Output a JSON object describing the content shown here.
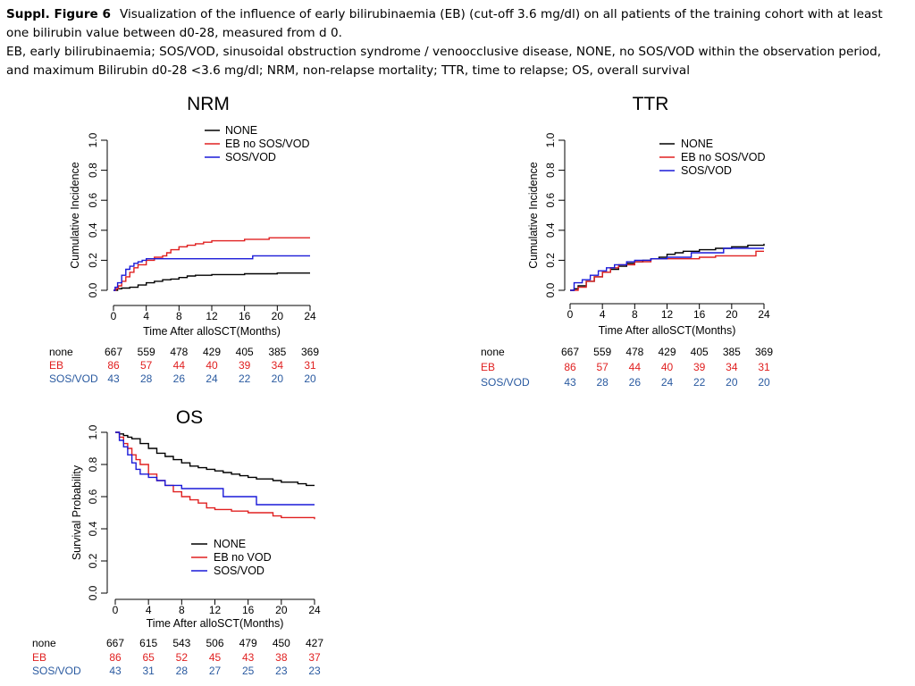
{
  "caption": {
    "label": "Suppl. Figure 6",
    "line1": "Visualization of  the influence of early bilirubinaemia (EB) (cut-off 3.6 mg/dl) on all patients of the training cohort with at least one bilirubin value between d0-28, measured from d 0.",
    "line2": "EB, early bilirubinaemia; SOS/VOD, sinusoidal obstruction syndrome / venoocclusive disease, NONE, no SOS/VOD within the observation period, and maximum Bilirubin d0-28 <3.6 mg/dl; NRM, non-relapse mortality; TTR, time to relapse; OS, overall survival"
  },
  "colors": {
    "none": "#000000",
    "eb": "#e02020",
    "sos": "#1a1ad8",
    "risk_eb": "#e02020",
    "risk_sos": "#2a5aa0"
  },
  "chart_data": [
    {
      "id": "nrm",
      "type": "line",
      "title": "NRM",
      "xlabel": "Time After alloSCT(Months)",
      "ylabel": "Cumulative Incidence",
      "xlim": [
        0,
        24
      ],
      "ylim": [
        0,
        1
      ],
      "xticks": [
        "0",
        "4",
        "8",
        "12",
        "16",
        "20",
        "24"
      ],
      "yticks": [
        "0.0",
        "0.2",
        "0.4",
        "0.6",
        "0.8",
        "1.0"
      ],
      "legend": [
        "NONE",
        "EB no SOS/VOD",
        "SOS/VOD"
      ],
      "series": [
        {
          "name": "NONE",
          "color_key": "none",
          "step": true,
          "x": [
            0,
            0.5,
            1,
            2,
            3,
            4,
            5,
            6,
            7,
            8,
            9,
            10,
            12,
            14,
            16,
            18,
            20,
            22,
            24
          ],
          "y": [
            0,
            0.01,
            0.015,
            0.02,
            0.035,
            0.05,
            0.06,
            0.07,
            0.075,
            0.085,
            0.095,
            0.1,
            0.105,
            0.105,
            0.11,
            0.11,
            0.115,
            0.115,
            0.115
          ]
        },
        {
          "name": "EB no SOS/VOD",
          "color_key": "eb",
          "step": true,
          "x": [
            0,
            0.3,
            0.6,
            1,
            1.5,
            2,
            2.5,
            3,
            4,
            5,
            6,
            6.5,
            7,
            8,
            9,
            10,
            11,
            12,
            14,
            16,
            18,
            19,
            20,
            24
          ],
          "y": [
            0,
            0.01,
            0.03,
            0.06,
            0.09,
            0.12,
            0.15,
            0.17,
            0.2,
            0.22,
            0.23,
            0.25,
            0.27,
            0.29,
            0.3,
            0.31,
            0.32,
            0.33,
            0.33,
            0.34,
            0.34,
            0.35,
            0.35,
            0.35
          ]
        },
        {
          "name": "SOS/VOD",
          "color_key": "sos",
          "step": true,
          "x": [
            0,
            0.2,
            0.5,
            1,
            1.5,
            2,
            2.5,
            3,
            3.5,
            4,
            5,
            8,
            12,
            16,
            17,
            20,
            24
          ],
          "y": [
            0,
            0.02,
            0.05,
            0.1,
            0.14,
            0.16,
            0.18,
            0.19,
            0.2,
            0.21,
            0.21,
            0.21,
            0.21,
            0.21,
            0.23,
            0.23,
            0.23
          ]
        }
      ],
      "risk_table": {
        "labels": [
          "none",
          "EB",
          "SOS/VOD"
        ],
        "none": [
          "667",
          "559",
          "478",
          "429",
          "405",
          "385",
          "369"
        ],
        "eb": [
          "86",
          "57",
          "44",
          "40",
          "39",
          "34",
          "31"
        ],
        "sos": [
          "43",
          "28",
          "26",
          "24",
          "22",
          "20",
          "20"
        ]
      }
    },
    {
      "id": "ttr",
      "type": "line",
      "title": "TTR",
      "xlabel": "Time After alloSCT(Months)",
      "ylabel": "Cumulative Incidence",
      "xlim": [
        0,
        24
      ],
      "ylim": [
        0,
        1
      ],
      "xticks": [
        "0",
        "4",
        "8",
        "12",
        "16",
        "20",
        "24"
      ],
      "yticks": [
        "0.0",
        "0.2",
        "0.4",
        "0.6",
        "0.8",
        "1.0"
      ],
      "legend": [
        "NONE",
        "EB no SOS/VOD",
        "SOS/VOD"
      ],
      "series": [
        {
          "name": "NONE",
          "color_key": "none",
          "step": true,
          "x": [
            0,
            0.5,
            1,
            2,
            3,
            4,
            5,
            6,
            7,
            8,
            9,
            10,
            11,
            12,
            13,
            14,
            16,
            18,
            20,
            22,
            24
          ],
          "y": [
            0,
            0.01,
            0.03,
            0.06,
            0.09,
            0.12,
            0.14,
            0.16,
            0.18,
            0.19,
            0.2,
            0.21,
            0.22,
            0.24,
            0.25,
            0.26,
            0.27,
            0.28,
            0.29,
            0.3,
            0.31
          ]
        },
        {
          "name": "EB no SOS/VOD",
          "color_key": "eb",
          "step": true,
          "x": [
            0,
            1,
            2,
            3,
            4,
            5,
            6,
            8,
            10,
            12,
            16,
            18,
            20,
            23,
            24
          ],
          "y": [
            0,
            0.02,
            0.06,
            0.09,
            0.12,
            0.15,
            0.17,
            0.19,
            0.21,
            0.21,
            0.22,
            0.23,
            0.23,
            0.26,
            0.26
          ]
        },
        {
          "name": "SOS/VOD",
          "color_key": "sos",
          "step": true,
          "x": [
            0,
            0.5,
            1.5,
            2.5,
            3.5,
            4.5,
            5.5,
            7,
            8,
            10,
            12,
            15,
            19,
            24
          ],
          "y": [
            0,
            0.05,
            0.07,
            0.1,
            0.13,
            0.15,
            0.17,
            0.19,
            0.2,
            0.21,
            0.22,
            0.25,
            0.28,
            0.28
          ]
        }
      ],
      "risk_table": {
        "labels": [
          "none",
          "EB",
          "SOS/VOD"
        ],
        "none": [
          "667",
          "559",
          "478",
          "429",
          "405",
          "385",
          "369"
        ],
        "eb": [
          "86",
          "57",
          "44",
          "40",
          "39",
          "34",
          "31"
        ],
        "sos": [
          "43",
          "28",
          "26",
          "24",
          "22",
          "20",
          "20"
        ]
      }
    },
    {
      "id": "os",
      "type": "line",
      "title": "OS",
      "xlabel": "Time After alloSCT(Months)",
      "ylabel": "Survival Probability",
      "xlim": [
        0,
        24
      ],
      "ylim": [
        0,
        1
      ],
      "xticks": [
        "0",
        "4",
        "8",
        "12",
        "16",
        "20",
        "24"
      ],
      "yticks": [
        "0.0",
        "0.2",
        "0.4",
        "0.6",
        "0.8",
        "1.0"
      ],
      "legend": [
        "NONE",
        "EB no VOD",
        "SOS/VOD"
      ],
      "series": [
        {
          "name": "NONE",
          "color_key": "none",
          "step": true,
          "x": [
            0,
            0.5,
            1,
            1.5,
            2,
            3,
            4,
            5,
            6,
            7,
            8,
            9,
            10,
            11,
            12,
            13,
            14,
            15,
            16,
            17,
            18,
            19,
            20,
            21,
            22,
            23,
            24
          ],
          "y": [
            1,
            0.99,
            0.98,
            0.97,
            0.96,
            0.93,
            0.9,
            0.87,
            0.85,
            0.83,
            0.81,
            0.79,
            0.78,
            0.77,
            0.76,
            0.75,
            0.74,
            0.73,
            0.72,
            0.71,
            0.71,
            0.7,
            0.69,
            0.69,
            0.68,
            0.67,
            0.67
          ]
        },
        {
          "name": "EB no VOD",
          "color_key": "eb",
          "step": true,
          "x": [
            0,
            0.5,
            1,
            1.5,
            2,
            2.5,
            3,
            4,
            5,
            6,
            7,
            8,
            9,
            10,
            11,
            12,
            14,
            16,
            18,
            19,
            20,
            22,
            24
          ],
          "y": [
            1,
            0.97,
            0.93,
            0.9,
            0.86,
            0.83,
            0.8,
            0.74,
            0.7,
            0.67,
            0.63,
            0.6,
            0.58,
            0.56,
            0.53,
            0.52,
            0.51,
            0.5,
            0.5,
            0.48,
            0.47,
            0.47,
            0.46
          ]
        },
        {
          "name": "SOS/VOD",
          "color_key": "sos",
          "step": true,
          "x": [
            0,
            0.5,
            1,
            1.5,
            2,
            2.5,
            3,
            4,
            5,
            6,
            8,
            10,
            12,
            13,
            17,
            20,
            24
          ],
          "y": [
            1,
            0.95,
            0.91,
            0.86,
            0.81,
            0.77,
            0.74,
            0.72,
            0.7,
            0.67,
            0.65,
            0.65,
            0.65,
            0.6,
            0.55,
            0.55,
            0.55
          ]
        }
      ],
      "risk_table": {
        "labels": [
          "none",
          "EB",
          "SOS/VOD"
        ],
        "none": [
          "667",
          "615",
          "543",
          "506",
          "479",
          "450",
          "427"
        ],
        "eb": [
          "86",
          "65",
          "52",
          "45",
          "43",
          "38",
          "37"
        ],
        "sos": [
          "43",
          "31",
          "28",
          "27",
          "25",
          "23",
          "23"
        ]
      }
    }
  ]
}
